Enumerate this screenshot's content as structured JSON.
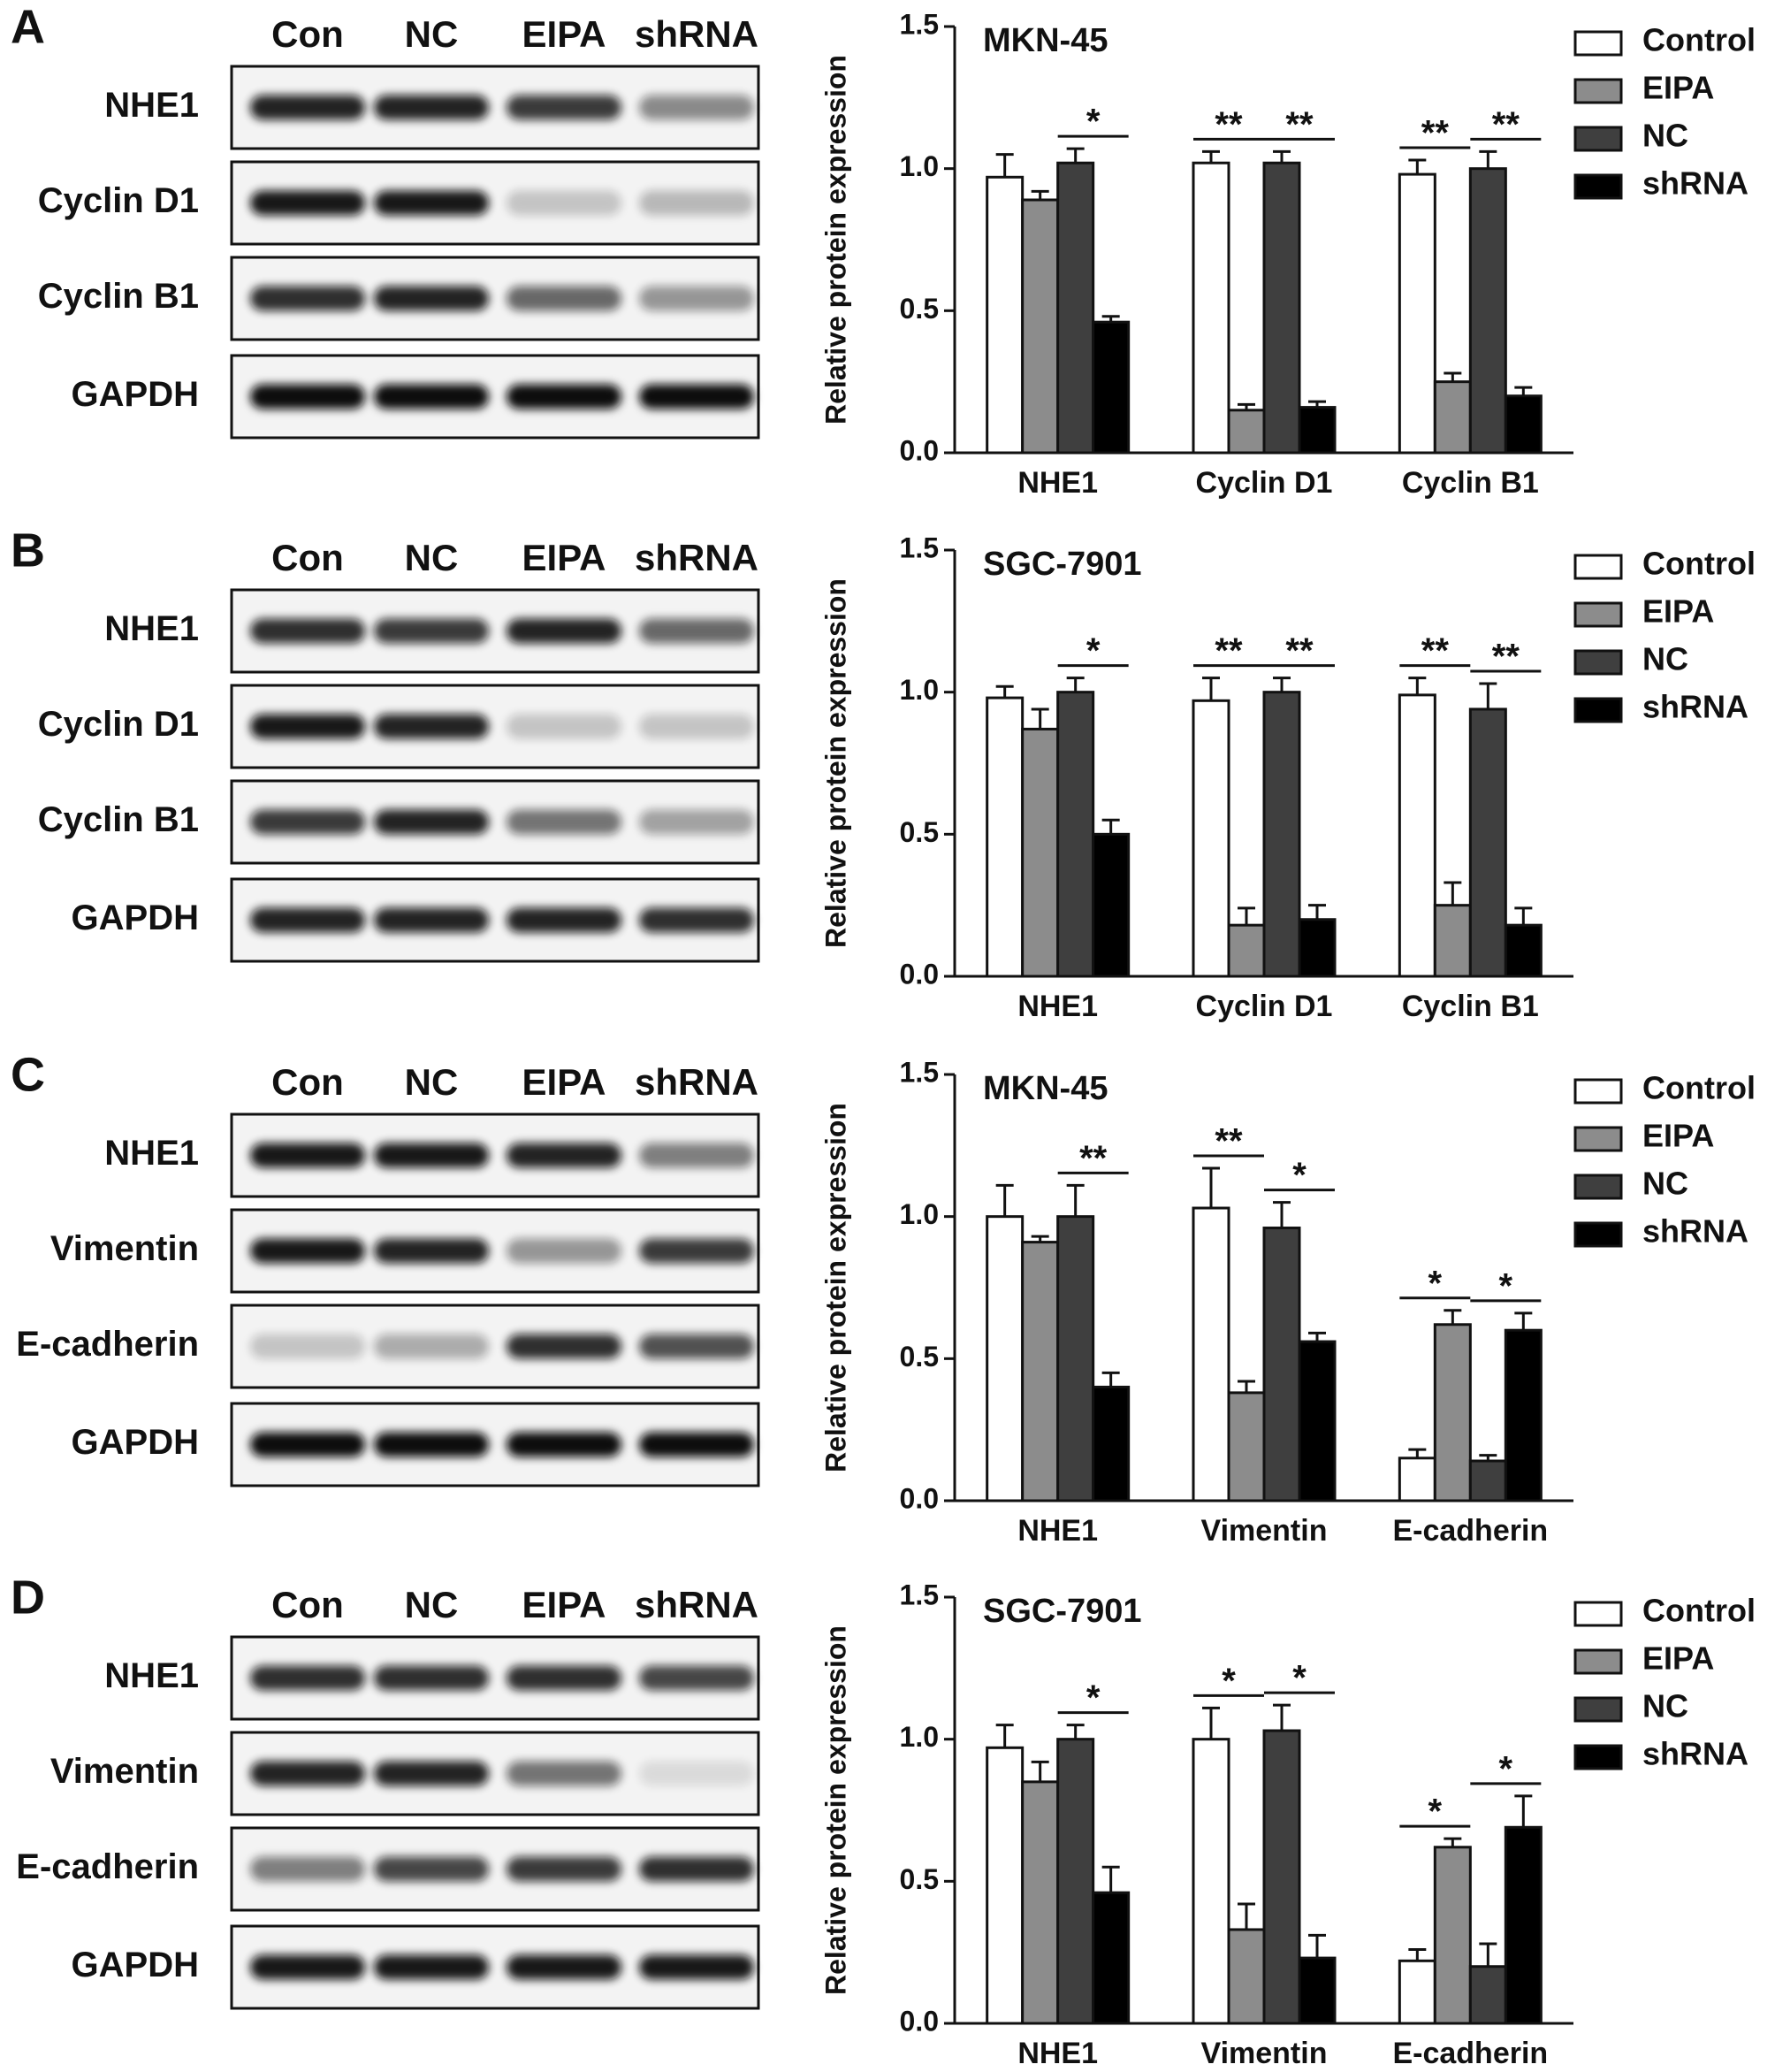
{
  "panels": [
    {
      "letter": "A",
      "lanes": [
        "Con",
        "NC",
        "EIPA",
        "shRNA"
      ],
      "rows": [
        "NHE1",
        "Cyclin D1",
        "Cyclin B1",
        "GAPDH"
      ]
    },
    {
      "letter": "B",
      "lanes": [
        "Con",
        "NC",
        "EIPA",
        "shRNA"
      ],
      "rows": [
        "NHE1",
        "Cyclin D1",
        "Cyclin B1",
        "GAPDH"
      ]
    },
    {
      "letter": "C",
      "lanes": [
        "Con",
        "NC",
        "EIPA",
        "shRNA"
      ],
      "rows": [
        "NHE1",
        "Vimentin",
        "E-cadherin",
        "GAPDH"
      ]
    },
    {
      "letter": "D",
      "lanes": [
        "Con",
        "NC",
        "EIPA",
        "shRNA"
      ],
      "rows": [
        "NHE1",
        "Vimentin",
        "E-cadherin",
        "GAPDH"
      ]
    }
  ],
  "chart_data": [
    {
      "type": "bar",
      "title": "MKN-45",
      "ylabel": "Relative protein expression",
      "categories": [
        "NHE1",
        "Cyclin D1",
        "Cyclin B1"
      ],
      "series": [
        {
          "name": "Control",
          "color": "#ffffff",
          "values": [
            0.97,
            1.02,
            0.98
          ],
          "errors": [
            0.08,
            0.04,
            0.05
          ]
        },
        {
          "name": "EIPA",
          "color": "#8c8c8c",
          "values": [
            0.89,
            0.15,
            0.25
          ],
          "errors": [
            0.03,
            0.02,
            0.03
          ]
        },
        {
          "name": "NC",
          "color": "#3f3f3f",
          "values": [
            1.02,
            1.02,
            1.0
          ],
          "errors": [
            0.05,
            0.04,
            0.06
          ]
        },
        {
          "name": "shRNA",
          "color": "#000000",
          "values": [
            0.46,
            0.16,
            0.2
          ],
          "errors": [
            0.02,
            0.02,
            0.03
          ]
        }
      ],
      "ylim": [
        0,
        1.5
      ],
      "yticks": [
        {
          "value": 0,
          "label": "0.0"
        },
        0.5,
        {
          "value": 1,
          "label": "1.0"
        },
        1.5
      ],
      "annotations": [
        "*",
        "**",
        "**",
        "**",
        "**"
      ]
    },
    {
      "type": "bar",
      "title": "SGC-7901",
      "ylabel": "Relative protein expression",
      "categories": [
        "NHE1",
        "Cyclin D1",
        "Cyclin B1"
      ],
      "series": [
        {
          "name": "Control",
          "color": "#ffffff",
          "values": [
            0.98,
            0.97,
            0.99
          ],
          "errors": [
            0.04,
            0.08,
            0.06
          ]
        },
        {
          "name": "EIPA",
          "color": "#8c8c8c",
          "values": [
            0.87,
            0.18,
            0.25
          ],
          "errors": [
            0.07,
            0.06,
            0.08
          ]
        },
        {
          "name": "NC",
          "color": "#3f3f3f",
          "values": [
            1.0,
            1.0,
            0.94
          ],
          "errors": [
            0.05,
            0.05,
            0.09
          ]
        },
        {
          "name": "shRNA",
          "color": "#000000",
          "values": [
            0.5,
            0.2,
            0.18
          ],
          "errors": [
            0.05,
            0.05,
            0.06
          ]
        }
      ],
      "ylim": [
        0,
        1.5
      ],
      "yticks": [
        {
          "value": 0,
          "label": "0.0"
        },
        0.5,
        {
          "value": 1,
          "label": "1.0"
        },
        1.5
      ],
      "annotations": [
        "*",
        "**",
        "**",
        "**",
        "**"
      ]
    },
    {
      "type": "bar",
      "title": "MKN-45",
      "ylabel": "Relative protein expression",
      "categories": [
        "NHE1",
        "Vimentin",
        "E-cadherin"
      ],
      "series": [
        {
          "name": "Control",
          "color": "#ffffff",
          "values": [
            1.0,
            1.03,
            0.15
          ],
          "errors": [
            0.11,
            0.14,
            0.03
          ]
        },
        {
          "name": "EIPA",
          "color": "#8c8c8c",
          "values": [
            0.91,
            0.38,
            0.62
          ],
          "errors": [
            0.02,
            0.04,
            0.05
          ]
        },
        {
          "name": "NC",
          "color": "#3f3f3f",
          "values": [
            1.0,
            0.96,
            0.14
          ],
          "errors": [
            0.11,
            0.09,
            0.02
          ]
        },
        {
          "name": "shRNA",
          "color": "#000000",
          "values": [
            0.4,
            0.56,
            0.6
          ],
          "errors": [
            0.05,
            0.03,
            0.06
          ]
        }
      ],
      "ylim": [
        0,
        1.5
      ],
      "yticks": [
        {
          "value": 0,
          "label": "0.0"
        },
        0.5,
        {
          "value": 1,
          "label": "1.0"
        },
        1.5
      ],
      "annotations": [
        "**",
        "**",
        "*",
        "*",
        "*"
      ]
    },
    {
      "type": "bar",
      "title": "SGC-7901",
      "ylabel": "Relative protein expression",
      "categories": [
        "NHE1",
        "Vimentin",
        "E-cadherin"
      ],
      "series": [
        {
          "name": "Control",
          "color": "#ffffff",
          "values": [
            0.97,
            1.0,
            0.22
          ],
          "errors": [
            0.08,
            0.11,
            0.04
          ]
        },
        {
          "name": "EIPA",
          "color": "#8c8c8c",
          "values": [
            0.85,
            0.33,
            0.62
          ],
          "errors": [
            0.07,
            0.09,
            0.03
          ]
        },
        {
          "name": "NC",
          "color": "#3f3f3f",
          "values": [
            1.0,
            1.03,
            0.2
          ],
          "errors": [
            0.05,
            0.09,
            0.08
          ]
        },
        {
          "name": "shRNA",
          "color": "#000000",
          "values": [
            0.46,
            0.23,
            0.69
          ],
          "errors": [
            0.09,
            0.08,
            0.11
          ]
        }
      ],
      "ylim": [
        0,
        1.5
      ],
      "yticks": [
        {
          "value": 0,
          "label": "0.0"
        },
        0.5,
        {
          "value": 1,
          "label": "1.0"
        },
        1.5
      ],
      "annotations": [
        "*",
        "*",
        "*",
        "*",
        "*"
      ]
    }
  ]
}
